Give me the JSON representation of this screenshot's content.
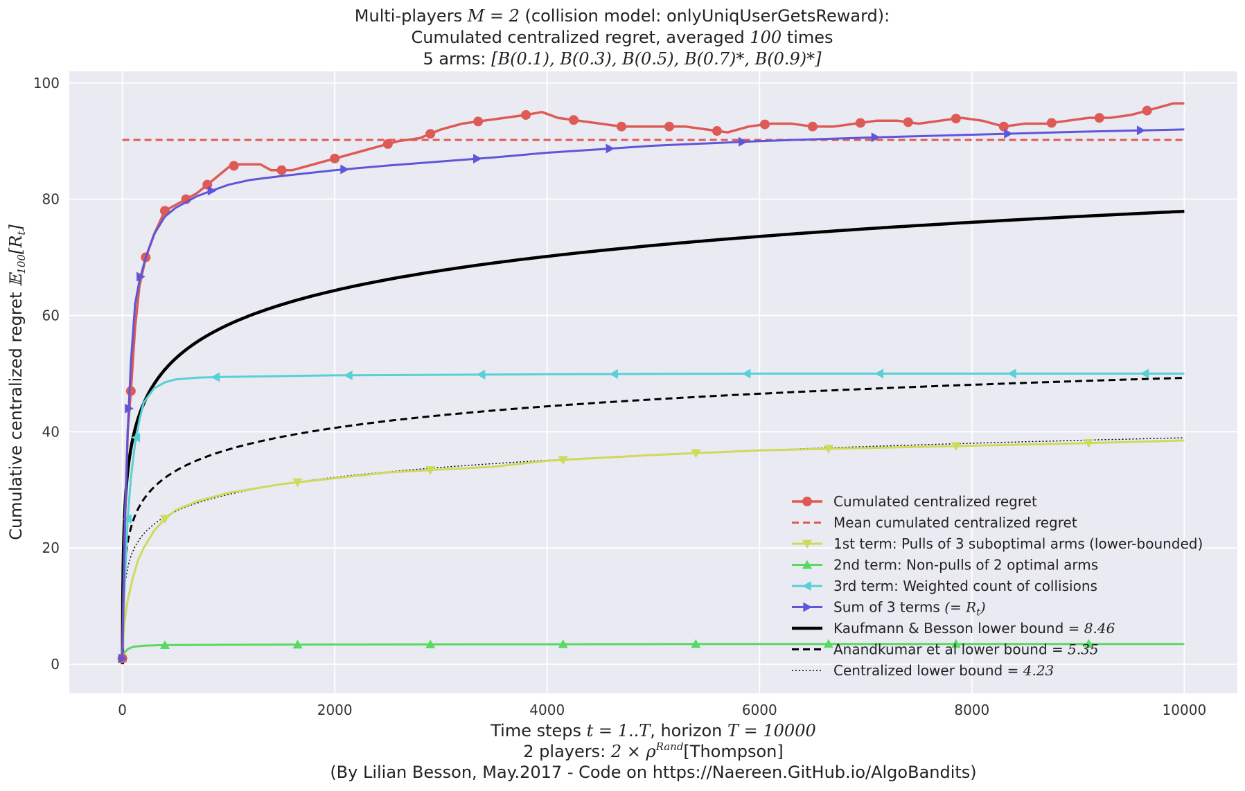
{
  "chart_data": {
    "type": "line",
    "title_lines": [
      [
        "Multi-players ",
        "M = 2",
        " (collision model: onlyUniqUserGetsReward):"
      ],
      [
        "Cumulated centralized regret, averaged ",
        "100",
        " times"
      ],
      [
        "5 arms: ",
        "[B(0.1), B(0.3), B(0.5), B(0.7)*, B(0.9)*]",
        ""
      ]
    ],
    "xlabel_lines": [
      [
        "Time steps ",
        "t = 1..T",
        ", horizon ",
        "T = 10000"
      ],
      [
        "2 players: ",
        "2 ×  ρ",
        "Rand",
        "[Thompson]"
      ],
      [
        "(By Lilian Besson, May.2017 - Code on https://Naereen.GitHub.io/AlgoBandits)"
      ]
    ],
    "ylabel_parts": [
      "Cumulative centralized regret ",
      "𝔼",
      "100",
      "[R",
      "t",
      "]"
    ],
    "xlim": [
      -500,
      10500
    ],
    "ylim": [
      -5,
      102
    ],
    "xticks": [
      0,
      2000,
      4000,
      6000,
      8000,
      10000
    ],
    "yticks": [
      0,
      20,
      40,
      60,
      80,
      100
    ],
    "grid": true,
    "legend_position": "lower right",
    "series": [
      {
        "name": "Cumulated centralized regret",
        "color": "#de5a55",
        "style": "solid",
        "width": 3.5,
        "marker": "circle",
        "x": [
          0,
          10,
          25,
          50,
          80,
          120,
          160,
          220,
          300,
          400,
          500,
          600,
          700,
          800,
          900,
          1000,
          1100,
          1200,
          1300,
          1400,
          1500,
          1600,
          1700,
          1800,
          1900,
          2000,
          2200,
          2400,
          2600,
          2800,
          3000,
          3200,
          3400,
          3600,
          3800,
          3950,
          4100,
          4300,
          4500,
          4700,
          4900,
          5100,
          5300,
          5500,
          5700,
          5900,
          6100,
          6300,
          6500,
          6700,
          6900,
          7100,
          7300,
          7500,
          7700,
          7900,
          8100,
          8300,
          8500,
          8700,
          8900,
          9100,
          9300,
          9500,
          9700,
          9900,
          10000
        ],
        "y": [
          1,
          12,
          25,
          40,
          47,
          58,
          65,
          70,
          74,
          78,
          79,
          80,
          81,
          82.5,
          84,
          85.5,
          86,
          86,
          86,
          85,
          85,
          85,
          85.5,
          86,
          86.5,
          87,
          88,
          89,
          90,
          90.5,
          92,
          93,
          93.5,
          94,
          94.5,
          95,
          94,
          93.5,
          93,
          92.5,
          92.5,
          92.5,
          92.5,
          92,
          91.5,
          92.5,
          93,
          93,
          92.5,
          92.5,
          93,
          93.5,
          93.5,
          93,
          93.5,
          94,
          93.5,
          92.5,
          93,
          93,
          93.5,
          94,
          94,
          94.5,
          95.5,
          96.5,
          96.5
        ],
        "marker_x": [
          0,
          80,
          220,
          400,
          600,
          800,
          1050,
          1500,
          2000,
          2500,
          2900,
          3350,
          3800,
          4250,
          4700,
          5150,
          5600,
          6050,
          6500,
          6950,
          7400,
          7850,
          8300,
          8750,
          9200,
          9650
        ]
      },
      {
        "name": "Mean cumulated centralized regret",
        "color": "#de5a55",
        "style": "dashed",
        "width": 3,
        "marker": "none",
        "x": [
          0,
          10000
        ],
        "y": [
          90.2,
          90.2
        ]
      },
      {
        "name": " 1st term: Pulls of 3 suboptimal arms (lower-bounded)",
        "color": "#cfd95a",
        "style": "solid",
        "width": 3,
        "marker": "triangle-down",
        "x": [
          0,
          10,
          25,
          50,
          100,
          150,
          200,
          300,
          400,
          500,
          700,
          1000,
          1500,
          2000,
          2500,
          3000,
          3500,
          4000,
          5000,
          6000,
          7000,
          8000,
          9000,
          10000
        ],
        "y": [
          1,
          5,
          8,
          11,
          15,
          18,
          20,
          23,
          25,
          26.5,
          28,
          29.5,
          31,
          32,
          33,
          33.5,
          34,
          35,
          36,
          36.8,
          37.2,
          37.6,
          38,
          38.5
        ],
        "marker_x": [
          0,
          400,
          1650,
          2900,
          4150,
          5400,
          6650,
          7850,
          9100
        ]
      },
      {
        "name": " 2nd term: Non-pulls of 2 optimal arms",
        "color": "#57d962",
        "style": "solid",
        "width": 3,
        "marker": "triangle-up",
        "x": [
          0,
          20,
          50,
          100,
          200,
          400,
          1000,
          2000,
          4000,
          6000,
          8000,
          10000
        ],
        "y": [
          1,
          2,
          2.6,
          3,
          3.2,
          3.3,
          3.35,
          3.4,
          3.45,
          3.5,
          3.5,
          3.5
        ],
        "marker_x": [
          0,
          400,
          1650,
          2900,
          4150,
          5400,
          6650,
          7850,
          9100
        ]
      },
      {
        "name": " 3rd term: Weighted count of collisions",
        "color": "#57d0d6",
        "style": "solid",
        "width": 3,
        "marker": "triangle-left",
        "x": [
          0,
          10,
          25,
          50,
          80,
          120,
          160,
          200,
          300,
          400,
          500,
          700,
          900,
          1200,
          1600,
          2000,
          3000,
          4000,
          5000,
          6000,
          7000,
          8000,
          9000,
          10000
        ],
        "y": [
          1,
          8,
          15,
          25,
          32,
          38,
          42,
          45,
          47.5,
          48.5,
          49,
          49.3,
          49.4,
          49.5,
          49.6,
          49.7,
          49.8,
          49.9,
          49.95,
          50,
          50,
          50,
          50,
          50
        ],
        "marker_x": [
          50,
          130,
          880,
          2130,
          3380,
          4630,
          5880,
          7130,
          8380,
          9630
        ]
      },
      {
        "name": "Sum of 3 terms (= R_t)",
        "color": "#5d56d9",
        "style": "solid",
        "width": 3,
        "marker": "triangle-right",
        "x": [
          0,
          10,
          25,
          50,
          80,
          120,
          160,
          220,
          300,
          400,
          500,
          600,
          700,
          800,
          1000,
          1200,
          1500,
          2000,
          2500,
          3000,
          3500,
          4000,
          4500,
          5000,
          6000,
          7000,
          8000,
          9000,
          10000
        ],
        "y": [
          1,
          12,
          25,
          40,
          52,
          62,
          66,
          70,
          74,
          77,
          78.5,
          79.5,
          80.5,
          81.2,
          82.5,
          83.3,
          84,
          85,
          85.8,
          86.5,
          87.2,
          88,
          88.6,
          89.2,
          90,
          90.6,
          91.1,
          91.6,
          92
        ],
        "marker_x": [
          0,
          60,
          170,
          840,
          2090,
          3340,
          4590,
          5840,
          7090,
          8340,
          9590
        ]
      },
      {
        "name": "Kaufmann & Besson lower bound = 8.46",
        "legend_parts": [
          "Kaufmann & Besson lower bound = ",
          "8.46"
        ],
        "color": "#000000",
        "style": "solid",
        "width": 4.5,
        "marker": "none",
        "function": "log",
        "coef": 8.46
      },
      {
        "name": "Anandkumar et al lower bound = 5.35",
        "legend_parts": [
          "Anandkumar et al lower bound = ",
          "5.35"
        ],
        "color": "#000000",
        "style": "dashed",
        "width": 3,
        "marker": "none",
        "function": "log",
        "coef": 5.35
      },
      {
        "name": "Centralized lower bound = 4.23",
        "legend_parts": [
          "Centralized lower bound = ",
          "4.23"
        ],
        "color": "#000000",
        "style": "dotted",
        "width": 1.5,
        "marker": "none",
        "function": "log",
        "coef": 4.23
      }
    ]
  }
}
